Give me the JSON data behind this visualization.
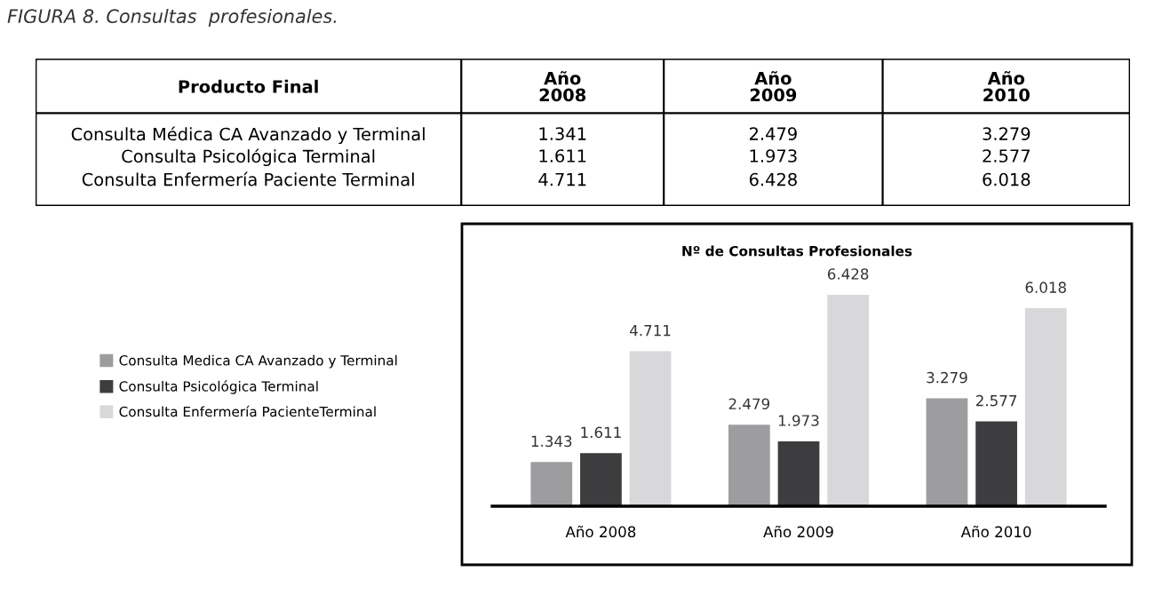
{
  "chart_data": [
    {
      "type": "other",
      "title": "FIGURA 8. Consultas  profesionales.",
      "annotations": [
        "Producto Final",
        "Año\n2008",
        "Año\n2009",
        "Año\n2010",
        "Consulta Médica CA Avanzado y Terminal",
        "1.341",
        "2.479",
        "3.279",
        "Consulta Psicológica Terminal",
        "1.611",
        "1.973",
        "2.577",
        "Consulta Enfermería Paciente Terminal",
        "4.711",
        "6.428",
        "6.018"
      ]
    },
    {
      "type": "bar",
      "title": "Nº de Consultas Profesionales",
      "categories": [
        "Año 2008",
        "Año 2009",
        "Año 2010"
      ],
      "series": [
        {
          "name": "Consulta Medica CA Avanzado y Terminal",
          "color": "#9d9d9f",
          "values": [
            1343,
            2479,
            3279
          ],
          "value_labels": [
            "1.343",
            "2.479",
            "3.279"
          ]
        },
        {
          "name": "Consulta Psicológica Terminal",
          "color": "#3d3d3f",
          "values": [
            1611,
            1973,
            2577
          ],
          "value_labels": [
            "1.611",
            "1.973",
            "2.577"
          ]
        },
        {
          "name": "Consulta Enfermería PacienteTerminal",
          "color": "#d8d8da",
          "values": [
            4711,
            6428,
            6018
          ],
          "value_labels": [
            "4.711",
            "6.428",
            "6.018"
          ]
        }
      ],
      "legend": "left",
      "grid": false
    }
  ]
}
